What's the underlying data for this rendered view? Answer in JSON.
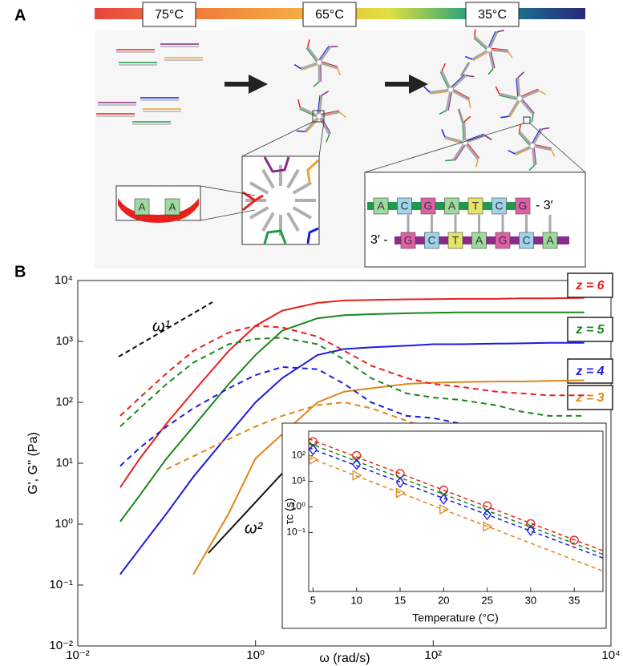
{
  "panel_labels": [
    "A",
    "B"
  ],
  "diagram": {
    "temperatures": [
      "75°C",
      "65°C",
      "35°C"
    ],
    "hairpin_bases": [
      "A",
      "A"
    ],
    "top_strand": {
      "bases": [
        "A",
        "C",
        "G",
        "A",
        "T",
        "C",
        "G"
      ],
      "end": "- 3′"
    },
    "bottom_strand": {
      "start": "3′ -",
      "bases": [
        "G",
        "C",
        "T",
        "A",
        "G",
        "C",
        "A"
      ]
    }
  },
  "chart_data": [
    {
      "type": "line",
      "x_label": "ω (rad/s)",
      "y_label": "G', G''   (Pa)",
      "log_x": true,
      "log_y": true,
      "xlim": [
        0.01,
        10000
      ],
      "ylim": [
        0.01,
        10000
      ],
      "xticks": [
        {
          "value": 0.01,
          "label": "10⁻²"
        },
        {
          "value": 1,
          "label": "10⁰"
        },
        {
          "value": 100,
          "label": "10²"
        },
        {
          "value": 10000,
          "label": "10⁴"
        }
      ],
      "yticks": [
        {
          "value": 0.01,
          "label": "10⁻²"
        },
        {
          "value": 0.1,
          "label": "10⁻¹"
        },
        {
          "value": 1,
          "label": "10⁰"
        },
        {
          "value": 10,
          "label": "10¹"
        },
        {
          "value": 100,
          "label": "10²"
        },
        {
          "value": 1000,
          "label": "10³"
        },
        {
          "value": 10000,
          "label": "10⁴"
        }
      ],
      "annotations": [
        "ω¹",
        "ω²"
      ],
      "x": [
        0.03,
        0.05,
        0.1,
        0.2,
        0.5,
        1,
        2,
        5,
        10,
        20,
        50,
        100,
        200,
        500,
        1000,
        2000,
        5000
      ],
      "series": [
        {
          "name": "z = 6",
          "color": "#e8201c",
          "values": [
            4,
            12,
            45,
            150,
            700,
            1800,
            3200,
            4300,
            4700,
            4800,
            4900,
            4950,
            5000,
            5000,
            5100,
            5100,
            5200
          ]
        },
        {
          "name": "z = 5",
          "color": "#1a861a",
          "values": [
            1.1,
            3,
            12,
            40,
            200,
            600,
            1500,
            2400,
            2700,
            2800,
            2900,
            2950,
            3000,
            3000,
            3000,
            3000,
            3000
          ]
        },
        {
          "name": "z = 4",
          "color": "#1c1ce0",
          "values": [
            0.15,
            0.4,
            1.5,
            6,
            30,
            100,
            250,
            600,
            750,
            800,
            850,
            900,
            900,
            920,
            930,
            950,
            950
          ]
        },
        {
          "name": "z = 3",
          "color": "#e0861a",
          "values": [
            null,
            null,
            null,
            0.15,
            1.5,
            12,
            30,
            100,
            150,
            170,
            200,
            210,
            215,
            220,
            220,
            225,
            230
          ]
        },
        {
          "color": "#e8201c",
          "dashed": true,
          "values": [
            60,
            120,
            300,
            700,
            1400,
            1800,
            1700,
            1200,
            700,
            400,
            250,
            200,
            180,
            150,
            140,
            130,
            130
          ]
        },
        {
          "color": "#1a861a",
          "dashed": true,
          "values": [
            40,
            80,
            200,
            450,
            900,
            1100,
            1150,
            900,
            500,
            250,
            140,
            120,
            110,
            90,
            70,
            60,
            60
          ]
        },
        {
          "color": "#1c1ce0",
          "dashed": true,
          "values": [
            9,
            18,
            40,
            80,
            170,
            280,
            380,
            350,
            200,
            100,
            60,
            55,
            45,
            35,
            30,
            25,
            24
          ]
        },
        {
          "color": "#e0861a",
          "dashed": true,
          "values": [
            null,
            null,
            8,
            13,
            25,
            40,
            60,
            90,
            100,
            80,
            50,
            35,
            30,
            20,
            16,
            14,
            15
          ]
        }
      ]
    },
    {
      "type": "scatter",
      "x_label": "Temperature (°C)",
      "y_label": "τc (s)",
      "log_y": true,
      "fit": true,
      "xlim": [
        4.5,
        38.3
      ],
      "ylim": [
        0.0005,
        900
      ],
      "xticks": [
        5,
        10,
        15,
        20,
        25,
        30,
        35
      ],
      "yticks": [
        {
          "value": 0.1,
          "label": "10⁻¹"
        },
        {
          "value": 1,
          "label": "10⁰"
        },
        {
          "value": 10,
          "label": "10¹"
        },
        {
          "value": 100,
          "label": "10²"
        }
      ],
      "x": [
        5,
        10,
        15,
        20,
        25,
        30,
        35
      ],
      "series": [
        {
          "color": "#e8201c",
          "marker": "circle",
          "values": [
            350,
            100,
            20,
            4.5,
            1.1,
            0.22,
            0.05
          ]
        },
        {
          "color": "#1a861a",
          "marker": "x",
          "values": [
            250,
            70,
            13,
            3,
            0.7,
            0.17,
            null
          ]
        },
        {
          "color": "#1c1ce0",
          "marker": "diamond",
          "values": [
            170,
            45,
            9,
            2,
            0.5,
            0.12,
            null
          ]
        },
        {
          "color": "#e0861a",
          "marker": "triangle",
          "values": [
            70,
            17,
            3.5,
            0.8,
            0.17,
            null,
            null
          ]
        }
      ]
    }
  ]
}
